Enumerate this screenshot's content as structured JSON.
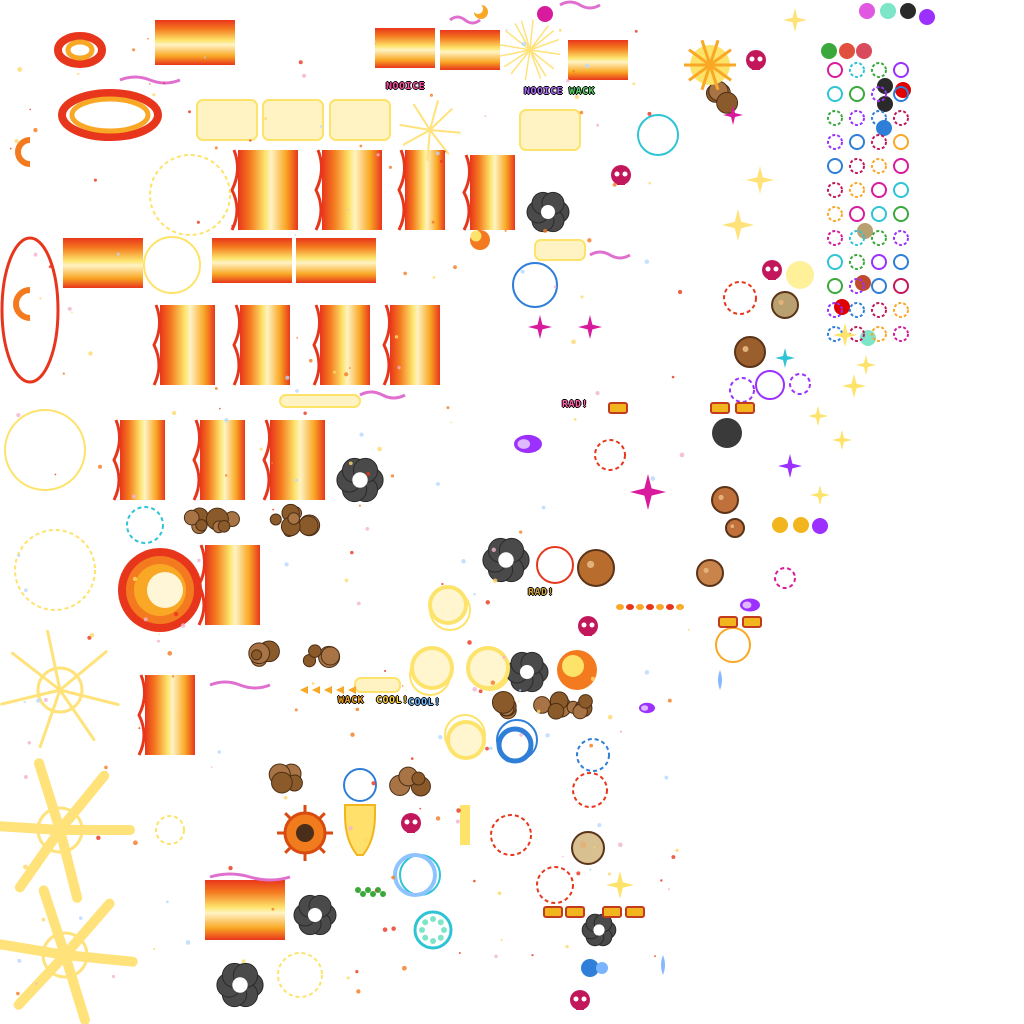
{
  "sheet": {
    "background": "#ffffff",
    "palette": {
      "fire_red": "#e8361c",
      "fire_orange": "#f47a1f",
      "fire_amber": "#f9a825",
      "fire_yellow": "#fde36a",
      "cream": "#fff3c4",
      "burst_yellow": "#ffe27a",
      "smoke": "#4a4a4a",
      "rock_brown": "#8b5a2b",
      "magenta": "#d81b9c",
      "violet": "#9b30ff",
      "cyan": "#2ec4d6",
      "blue": "#2f7fd8",
      "mint": "#7fe5c9",
      "crimson": "#c2185b",
      "green": "#3aa83a"
    },
    "labels": [
      {
        "text": "NOOICE",
        "color": "#ff4fa3"
      },
      {
        "text": "NOOICE",
        "color": "#b06cff"
      },
      {
        "text": "WACK",
        "color": "#59d36a"
      },
      {
        "text": "RAD!",
        "color": "#ff5fa8"
      },
      {
        "text": "RAD!",
        "color": "#d2a23a"
      },
      {
        "text": "WACK",
        "color": "#f0a020"
      },
      {
        "text": "COOL!",
        "color": "#ffd43a"
      },
      {
        "text": "COOL!",
        "color": "#6fb9ff"
      }
    ],
    "icons": [
      "explosion-icon",
      "fire-ring-icon",
      "smoke-puff-icon",
      "rock-debris-icon",
      "sparkle-icon",
      "burst-rays-icon",
      "skull-icon",
      "comet-icon",
      "planet-icon",
      "shockwave-ring-icon",
      "moon-icon",
      "star-icon"
    ]
  }
}
